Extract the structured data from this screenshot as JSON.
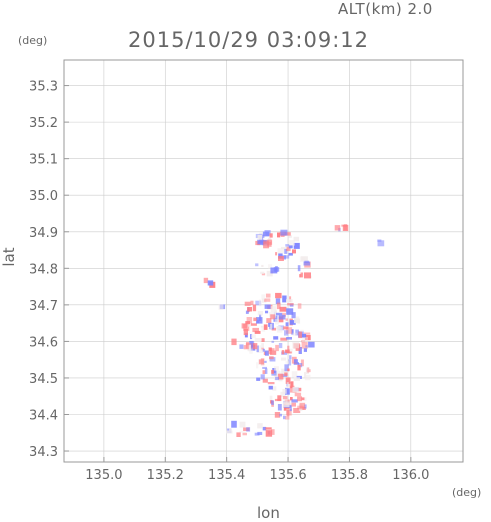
{
  "header": {
    "altitude_label": "ALT(km) 2.0",
    "timestamp": "2015/10/29 03:09:12",
    "y_unit": "(deg)",
    "x_unit": "(deg)"
  },
  "axes": {
    "xlabel": "lon",
    "ylabel": "lat",
    "xlim": [
      134.87,
      136.17
    ],
    "ylim": [
      34.27,
      35.37
    ],
    "x_ticks": [
      "135.0",
      "135.2",
      "135.4",
      "135.6",
      "135.8",
      "136.0"
    ],
    "y_ticks": [
      "34.3",
      "34.4",
      "34.5",
      "34.6",
      "34.7",
      "34.8",
      "34.9",
      "35.0",
      "35.1",
      "35.2",
      "35.3"
    ],
    "grid": true
  },
  "colors": {
    "positive": "#ff7c82",
    "negative": "#7c82ff",
    "neutral": "#f2ecec",
    "frame": "#999999",
    "grid": "#cccccc"
  },
  "clusters": [
    {
      "lon": 135.52,
      "lat": 34.88,
      "rx": 0.03,
      "ry": 0.02,
      "n": 18
    },
    {
      "lon": 135.6,
      "lat": 34.86,
      "rx": 0.05,
      "ry": 0.04,
      "n": 22
    },
    {
      "lon": 135.66,
      "lat": 34.8,
      "rx": 0.03,
      "ry": 0.03,
      "n": 10
    },
    {
      "lon": 135.53,
      "lat": 34.8,
      "rx": 0.04,
      "ry": 0.02,
      "n": 10
    },
    {
      "lon": 135.78,
      "lat": 34.91,
      "rx": 0.02,
      "ry": 0.01,
      "n": 5
    },
    {
      "lon": 135.9,
      "lat": 34.87,
      "rx": 0.01,
      "ry": 0.01,
      "n": 2
    },
    {
      "lon": 135.55,
      "lat": 34.68,
      "rx": 0.1,
      "ry": 0.05,
      "n": 60
    },
    {
      "lon": 135.57,
      "lat": 34.6,
      "rx": 0.11,
      "ry": 0.05,
      "n": 70
    },
    {
      "lon": 135.58,
      "lat": 34.51,
      "rx": 0.1,
      "ry": 0.05,
      "n": 60
    },
    {
      "lon": 135.6,
      "lat": 34.43,
      "rx": 0.06,
      "ry": 0.04,
      "n": 40
    },
    {
      "lon": 135.48,
      "lat": 34.36,
      "rx": 0.08,
      "ry": 0.02,
      "n": 18
    },
    {
      "lon": 135.45,
      "lat": 34.62,
      "rx": 0.03,
      "ry": 0.05,
      "n": 10
    },
    {
      "lon": 135.34,
      "lat": 34.76,
      "rx": 0.02,
      "ry": 0.01,
      "n": 3
    },
    {
      "lon": 135.38,
      "lat": 34.7,
      "rx": 0.01,
      "ry": 0.01,
      "n": 2
    }
  ]
}
